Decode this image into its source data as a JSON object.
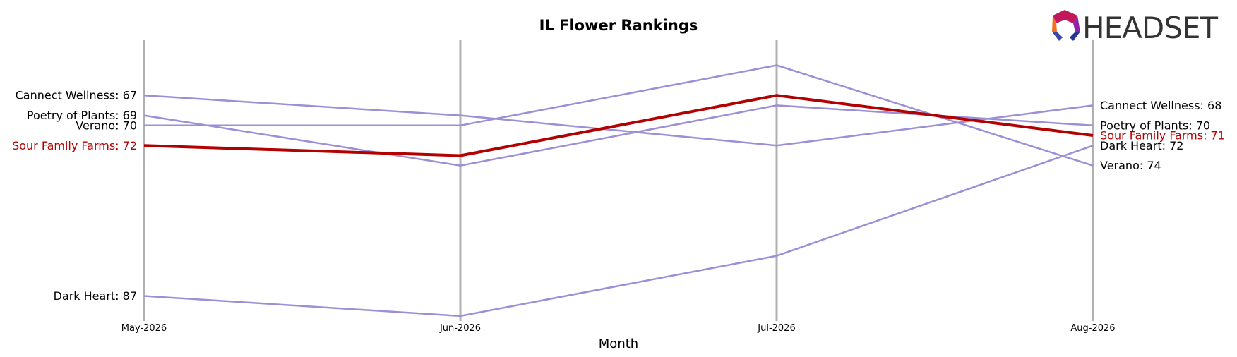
{
  "chart_data": {
    "type": "line",
    "title": "IL Flower Rankings",
    "xlabel": "Month",
    "ylabel": "",
    "categories": [
      "May-2026",
      "Jun-2026",
      "Jul-2026",
      "Aug-2026"
    ],
    "ylim": [
      89.5,
      61.5
    ],
    "y_inverted": true,
    "grid": "vertical",
    "series": [
      {
        "name": "Cannect Wellness",
        "values": [
          67,
          69,
          72,
          68
        ],
        "color": "#9b8fd8",
        "highlight": false
      },
      {
        "name": "Poetry of Plants",
        "values": [
          69,
          74,
          68,
          70
        ],
        "color": "#9b8fd8",
        "highlight": false
      },
      {
        "name": "Verano",
        "values": [
          70,
          70,
          64,
          74
        ],
        "color": "#9b8fd8",
        "highlight": false
      },
      {
        "name": "Dark Heart",
        "values": [
          87,
          89,
          83,
          72
        ],
        "color": "#9b8fd8",
        "highlight": false
      },
      {
        "name": "Sour Family Farms",
        "values": [
          72,
          73,
          67,
          71
        ],
        "color": "#b30000",
        "highlight": true
      }
    ]
  },
  "logo": {
    "text": "HEADSET",
    "name": "headset-logo"
  },
  "colors": {
    "highlight": "#b30000",
    "other": "#9b8fd8",
    "gridline": "#b0b0b0"
  }
}
